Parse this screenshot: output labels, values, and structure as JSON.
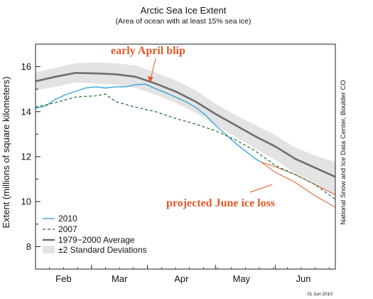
{
  "chart_data": {
    "type": "line",
    "title": "Arctic Sea Ice Extent",
    "subtitle": "(Area of ocean with at least 15% sea ice)",
    "ylabel": "Extent (millions of square kilometers)",
    "xlabel": "",
    "ylim": [
      7,
      17
    ],
    "xlim": [
      0,
      150
    ],
    "y_ticks": [
      8,
      10,
      12,
      14,
      16
    ],
    "x_ticks": [
      {
        "label": "Feb",
        "x": 14
      },
      {
        "label": "Mar",
        "x": 42
      },
      {
        "label": "Apr",
        "x": 73
      },
      {
        "label": "May",
        "x": 103
      },
      {
        "label": "Jun",
        "x": 134
      }
    ],
    "grid": false,
    "legend_position": "bottom-left",
    "series": [
      {
        "name": "1979−2000 Average",
        "style": "solid-thick",
        "color": "#6e6e6e",
        "x": [
          0,
          10,
          20,
          30,
          40,
          50,
          60,
          70,
          80,
          90,
          100,
          110,
          120,
          130,
          140,
          150
        ],
        "y": [
          15.35,
          15.55,
          15.72,
          15.7,
          15.66,
          15.55,
          15.25,
          14.9,
          14.45,
          13.9,
          13.4,
          12.9,
          12.45,
          11.9,
          11.5,
          11.1
        ]
      },
      {
        "name": "±2 Standard Deviations",
        "style": "band",
        "color": "#e3e3e3",
        "x": [
          0,
          10,
          20,
          30,
          40,
          50,
          60,
          70,
          80,
          90,
          100,
          110,
          120,
          130,
          140,
          150
        ],
        "upper": [
          15.75,
          15.95,
          16.15,
          16.2,
          16.15,
          16.05,
          15.75,
          15.4,
          14.95,
          14.35,
          13.85,
          13.4,
          12.95,
          12.4,
          12.05,
          11.75
        ],
        "lower": [
          14.95,
          15.1,
          15.3,
          15.25,
          15.2,
          15.05,
          14.75,
          14.4,
          13.95,
          13.4,
          12.9,
          12.35,
          11.85,
          11.25,
          10.8,
          10.3
        ]
      },
      {
        "name": "2010",
        "style": "solid",
        "color": "#1f9bd7",
        "x": [
          0,
          5,
          10,
          15,
          20,
          25,
          30,
          35,
          40,
          45,
          50,
          55,
          60,
          65,
          70,
          75,
          80,
          85,
          90,
          95,
          100,
          105,
          110,
          113
        ],
        "y": [
          14.15,
          14.25,
          14.55,
          14.75,
          14.9,
          15.05,
          15.1,
          15.05,
          15.1,
          15.1,
          15.2,
          15.22,
          15.02,
          14.85,
          14.65,
          14.45,
          14.2,
          13.85,
          13.4,
          13.0,
          12.6,
          12.25,
          11.9,
          11.75
        ]
      },
      {
        "name": "2007",
        "style": "dashed",
        "color": "#1d6b2a",
        "x": [
          0,
          10,
          20,
          25,
          30,
          35,
          40,
          50,
          60,
          70,
          80,
          90,
          100,
          110,
          120,
          130,
          140,
          150
        ],
        "y": [
          14.2,
          14.4,
          14.65,
          14.68,
          14.7,
          14.78,
          14.45,
          14.2,
          14.0,
          13.7,
          13.45,
          13.15,
          12.75,
          12.25,
          11.6,
          11.2,
          10.75,
          10.1
        ]
      }
    ],
    "projection": {
      "color": "#e05a2a",
      "x": [
        113,
        120,
        130,
        140,
        150
      ],
      "upper": [
        11.75,
        11.55,
        11.2,
        10.75,
        10.3
      ],
      "lower": [
        11.75,
        11.3,
        10.85,
        10.25,
        9.75
      ]
    },
    "annotations": [
      {
        "text": "early April blip",
        "color": "#e05a2a",
        "points_to": {
          "x": 56,
          "y": 15.22
        }
      },
      {
        "text": "projected June ice loss",
        "color": "#e05a2a",
        "points_to": {
          "x": 122,
          "y": 11.2
        }
      }
    ],
    "credit": "National Snow and Ice Data Center, Boulder CO",
    "date_stamp": "01 Jun 2010"
  }
}
